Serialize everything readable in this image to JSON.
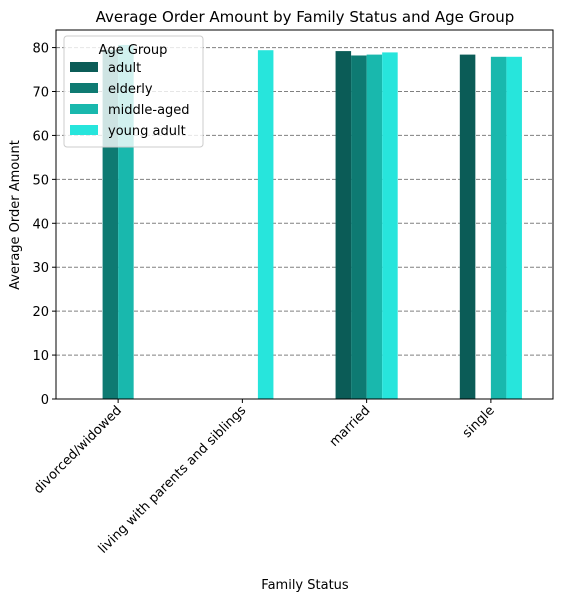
{
  "chart_data": {
    "type": "bar",
    "title": "Average Order Amount by Family Status and Age Group",
    "xlabel": "Family Status",
    "ylabel": "Average Order Amount",
    "categories": [
      "divorced/widowed",
      "living with parents and siblings",
      "married",
      "single"
    ],
    "series": [
      {
        "name": "adult",
        "color": "#0b5c57",
        "values": [
          null,
          null,
          79.2,
          78.4
        ]
      },
      {
        "name": "elderly",
        "color": "#0e7a72",
        "values": [
          79.5,
          null,
          78.2,
          null
        ]
      },
      {
        "name": "middle-aged",
        "color": "#19b8ad",
        "values": [
          80.6,
          null,
          78.4,
          77.9
        ]
      },
      {
        "name": "young adult",
        "color": "#27e5dc",
        "values": [
          null,
          79.4,
          78.9,
          77.9
        ]
      }
    ],
    "ylim": [
      0,
      84
    ],
    "yticks": [
      0,
      10,
      20,
      30,
      40,
      50,
      60,
      70,
      80
    ],
    "grid": "y dashed",
    "legend": {
      "title": "Age Group",
      "position": "top-left"
    }
  }
}
